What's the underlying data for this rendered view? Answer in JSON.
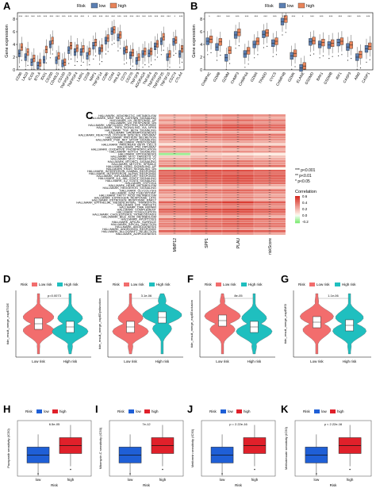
{
  "panel_labels": {
    "A": "A",
    "B": "B",
    "C": "C",
    "D": "D",
    "E": "E",
    "F": "F",
    "G": "G",
    "H": "H",
    "I": "I",
    "J": "J",
    "K": "K"
  },
  "colors": {
    "low": "#5b7fb3",
    "high": "#e8845a",
    "low_violin": "#1fbfbf",
    "high_violin": "#f26d6d",
    "low_box": "#1f5fd6",
    "high_box": "#e0202a"
  },
  "chart_data": [
    {
      "id": "A",
      "type": "box",
      "legend_title": "Risk",
      "legend": [
        "low",
        "high"
      ],
      "ylabel": "Gene expression",
      "yticks": [
        "0",
        "2",
        "4",
        "6",
        "8"
      ],
      "ylim": [
        0,
        9
      ],
      "categories": [
        "CD96",
        "LAG3",
        "ICOS",
        "BTLA",
        "IDO1",
        "CD200",
        "CD40LG",
        "CD160",
        "TNFRSF18",
        "TNFRSF4",
        "LAIR1",
        "CD28",
        "NRP1",
        "TNFSF14",
        "CD86",
        "CD44",
        "HHLA2",
        "CD70",
        "CD276",
        "TNFSF9",
        "ADORA2A",
        "TNFSF4",
        "TNFRSF8",
        "TNFRSF25",
        "TNFSF15",
        "CD274",
        "CTLA4"
      ],
      "significance": [
        "***",
        "***",
        "***",
        "***",
        "***",
        "***",
        "***",
        "***",
        "***",
        "***",
        "***",
        "*",
        "***",
        "***",
        "***",
        "***",
        "***",
        "***",
        "***",
        "***",
        "***",
        "***",
        "***",
        "***",
        "***",
        "*",
        "***"
      ],
      "low_medians": [
        2.6,
        2.0,
        1.2,
        0.7,
        1.6,
        4.0,
        1.5,
        1.0,
        3.1,
        2.8,
        2.8,
        2.2,
        3.8,
        3.0,
        4.6,
        6.1,
        5.1,
        3.0,
        2.3,
        1.4,
        2.5,
        2.6,
        3.7,
        4.5,
        2.0,
        4.4,
        2.5
      ],
      "high_medians": [
        3.6,
        2.8,
        1.8,
        1.1,
        3.2,
        4.6,
        2.2,
        1.2,
        3.8,
        3.4,
        3.3,
        2.9,
        4.3,
        3.4,
        5.0,
        6.3,
        5.5,
        3.2,
        2.7,
        2.0,
        2.9,
        2.9,
        4.1,
        5.2,
        2.5,
        4.7,
        3.3
      ]
    },
    {
      "id": "B",
      "type": "box",
      "legend_title": "Risk",
      "legend": [
        "low",
        "high"
      ],
      "ylabel": "Gene expression",
      "yticks": [
        "0",
        "2",
        "4",
        "6",
        "8"
      ],
      "ylim": [
        0,
        9
      ],
      "categories": [
        "CHMP4C",
        "GZMB",
        "GZMM",
        "CHMP3",
        "CHMP4A",
        "GZMA",
        "TRADD",
        "CYCS",
        "CHMP4B",
        "GZMK",
        "ELANE",
        "GSDMD",
        "BAK1",
        "GSDMB",
        "IRF1",
        "CASP3",
        "AIM2",
        "CASP1"
      ],
      "significance": [
        "*",
        "***",
        "***",
        "***",
        "***",
        "***",
        "***",
        "***",
        "***",
        "***",
        "*",
        "***",
        "***",
        "***",
        "***",
        "***",
        "***",
        "***"
      ],
      "low_medians": [
        4.5,
        3.6,
        1.9,
        5.5,
        2.5,
        4.0,
        5.6,
        4.2,
        7.6,
        2.2,
        0.3,
        4.4,
        4.0,
        3.9,
        4.3,
        3.6,
        2.0,
        3.3
      ],
      "high_medians": [
        4.8,
        4.4,
        3.1,
        5.9,
        3.0,
        4.5,
        5.8,
        4.5,
        8.0,
        2.6,
        0.6,
        4.6,
        4.3,
        4.2,
        4.5,
        3.9,
        2.4,
        3.7
      ]
    },
    {
      "id": "C",
      "type": "heatmap",
      "rows": [
        "HALLMARK_XENOBIOTIC_METABOLISM",
        "HALLMARK_WNT_BETA_CATENIN_SIGNALING",
        "HALLMARK_UV_RESPONSE_UP",
        "HALLMARK_UV_RESPONSE_DN",
        "HALLMARK_UNFOLDED_PROTEIN_RESPONSE",
        "HALLMARK_TNFA_SIGNALING_VIA_NFKB",
        "HALLMARK_TGF_BETA_SIGNALING",
        "HALLMARK_SPERMATOGENESIS",
        "HALLMARK_REACTIVE_OXYGEN_SPECIES_PATHWAY",
        "HALLMARK_PROTEIN_SECRETION",
        "HALLMARK_PI3K_AKT_MTOR_SIGNALING",
        "HALLMARK_PEROXISOME",
        "HALLMARK_PANCREAS_BETA_CELLS",
        "HALLMARK_P53_PATHWAY",
        "HALLMARK_OXIDATIVE_PHOSPHORYLATION",
        "HALLMARK_NOTCH_SIGNALING",
        "HALLMARK_MYOGENESIS",
        "HALLMARK_MYC_TARGETS_V2",
        "HALLMARK_MYC_TARGETS_V1",
        "HALLMARK_MTORC1_SIGNALING",
        "HALLMARK_MITOTIC_SPINDLE",
        "HALLMARK_KRAS_SIGNALING_UP",
        "HALLMARK_KRAS_SIGNALING_DN",
        "HALLMARK_INTERFERON_GAMMA_RESPONSE",
        "HALLMARK_INTERFERON_ALPHA_RESPONSE",
        "HALLMARK_INFLAMMATORY_RESPONSE",
        "HALLMARK_IL6_JAK_STAT3_SIGNALING",
        "HALLMARK_IL2_STAT5_SIGNALING",
        "HALLMARK_HYPOXIA",
        "HALLMARK_HEME_METABOLISM",
        "HALLMARK_HEDGEHOG_SIGNALING",
        "HALLMARK_GLYCOLYSIS",
        "HALLMARK_G2M_CHECKPOINT",
        "HALLMARK_FATTY_ACID_METABOLISM",
        "HALLMARK_ESTROGEN_RESPONSE_LATE",
        "HALLMARK_ESTROGEN_RESPONSE_EARLY",
        "HALLMARK_EPITHELIAL_MESENCHYMAL_TRANSITION",
        "HALLMARK_E2F_TARGETS",
        "HALLMARK_DNA_REPAIR",
        "HALLMARK_COMPLEMENT",
        "HALLMARK_COAGULATION",
        "HALLMARK_CHOLESTEROL_HOMEOSTASIS",
        "HALLMARK_BILE_ACID_METABOLISM",
        "HALLMARK_APOPTOSIS",
        "HALLMARK_APICAL_SURFACE",
        "HALLMARK_APICAL_JUNCTION",
        "HALLMARK_ANGIOGENESIS",
        "HALLMARK_ANDROGEN_RESPONSE",
        "HALLMARK_ALLOGRAFT_REJECTION",
        "HALLMARK_ADIPOGENESIS"
      ],
      "columns": [
        "MMP12",
        "SPP1",
        "PLAU",
        "riskScore"
      ],
      "values": [
        [
          0.25,
          0.3,
          0.35,
          0.3
        ],
        [
          0.15,
          0.2,
          0.25,
          0.2
        ],
        [
          0.3,
          0.35,
          0.4,
          0.35
        ],
        [
          0.2,
          0.25,
          0.3,
          0.28
        ],
        [
          0.35,
          0.4,
          0.45,
          0.4
        ],
        [
          0.4,
          0.45,
          0.5,
          0.42
        ],
        [
          0.3,
          0.35,
          0.4,
          0.35
        ],
        [
          0.1,
          0.15,
          0.2,
          0.12
        ],
        [
          0.35,
          0.4,
          0.4,
          0.38
        ],
        [
          0.3,
          0.35,
          0.38,
          0.32
        ],
        [
          0.28,
          0.3,
          0.35,
          0.3
        ],
        [
          0.2,
          0.22,
          0.25,
          0.22
        ],
        [
          0.05,
          0.1,
          0.12,
          0.08
        ],
        [
          0.3,
          0.35,
          0.4,
          0.35
        ],
        [
          0.15,
          0.2,
          0.18,
          0.2
        ],
        [
          0.25,
          0.28,
          0.3,
          0.26
        ],
        [
          -0.2,
          0.1,
          0.05,
          0.02
        ],
        [
          0.12,
          0.18,
          0.2,
          0.15
        ],
        [
          0.2,
          0.25,
          0.22,
          0.22
        ],
        [
          0.3,
          0.35,
          0.38,
          0.32
        ],
        [
          0.25,
          0.3,
          0.32,
          0.28
        ],
        [
          0.38,
          0.42,
          0.45,
          0.4
        ],
        [
          -0.1,
          0.05,
          0.08,
          0.0
        ],
        [
          0.45,
          0.5,
          0.5,
          0.45
        ],
        [
          0.4,
          0.45,
          0.42,
          0.4
        ],
        [
          0.45,
          0.48,
          0.5,
          0.45
        ],
        [
          0.42,
          0.45,
          0.48,
          0.42
        ],
        [
          0.4,
          0.45,
          0.48,
          0.42
        ],
        [
          0.38,
          0.42,
          0.45,
          0.4
        ],
        [
          0.2,
          0.25,
          0.28,
          0.22
        ],
        [
          0.1,
          0.15,
          0.2,
          0.12
        ],
        [
          0.35,
          0.4,
          0.42,
          0.38
        ],
        [
          0.3,
          0.35,
          0.38,
          0.32
        ],
        [
          0.2,
          0.25,
          0.28,
          0.22
        ],
        [
          0.28,
          0.32,
          0.35,
          0.3
        ],
        [
          0.15,
          0.2,
          0.25,
          0.18
        ],
        [
          0.45,
          0.5,
          0.55,
          0.45
        ],
        [
          0.3,
          0.35,
          0.38,
          0.32
        ],
        [
          0.25,
          0.3,
          0.32,
          0.28
        ],
        [
          0.45,
          0.5,
          0.52,
          0.45
        ],
        [
          0.4,
          0.45,
          0.48,
          0.42
        ],
        [
          0.3,
          0.35,
          0.38,
          0.32
        ],
        [
          0.15,
          0.2,
          0.22,
          0.18
        ],
        [
          0.4,
          0.45,
          0.48,
          0.42
        ],
        [
          0.3,
          0.35,
          0.38,
          0.32
        ],
        [
          0.35,
          0.4,
          0.45,
          0.38
        ],
        [
          0.35,
          0.4,
          0.42,
          0.38
        ],
        [
          0.2,
          0.25,
          0.28,
          0.22
        ],
        [
          0.45,
          0.5,
          0.5,
          0.45
        ],
        [
          0.2,
          0.25,
          0.28,
          0.22
        ]
      ],
      "legend_sig": [
        "*** p<0.001",
        "** p<0.01",
        "* p<0.05"
      ],
      "legend_title": "Correlation",
      "legend_ticks": [
        "0.6",
        "0.4",
        "0.2",
        "0.0",
        "-0.2"
      ],
      "clim": [
        -0.25,
        0.6
      ]
    },
    {
      "id": "D",
      "type": "violin",
      "legend_title": "Risk",
      "legend": [
        "Low risk",
        "High risk"
      ],
      "ylabel": "tide_result_merge_exp$TIDE",
      "xlabels": [
        "Low risk",
        "High risk"
      ],
      "pvalue": "p=0.0073",
      "low_median": 0.0,
      "high_median": -0.1
    },
    {
      "id": "E",
      "type": "violin",
      "legend_title": "Risk",
      "legend": [
        "Low risk",
        "High risk"
      ],
      "ylabel": "tide_result_merge_exp$Dysfunction",
      "xlabels": [
        "Low risk",
        "High risk"
      ],
      "pvalue": "3.1e-06",
      "low_median": -0.1,
      "high_median": 0.2
    },
    {
      "id": "F",
      "type": "violin",
      "legend_title": "Risk",
      "legend": [
        "Low risk",
        "High risk"
      ],
      "ylabel": "tide_result_merge_exp$Exclusion",
      "xlabels": [
        "Low risk",
        "High risk"
      ],
      "pvalue": "8e-05",
      "low_median": 0.1,
      "high_median": -0.1
    },
    {
      "id": "G",
      "type": "violin",
      "legend_title": "Risk",
      "legend": [
        "Low risk",
        "High risk"
      ],
      "ylabel": "tide_result_merge_exp$MSI",
      "xlabels": [
        "Low risk",
        "High risk"
      ],
      "pvalue": "1.1e-06",
      "low_median": 0.05,
      "high_median": -0.05
    },
    {
      "id": "H",
      "type": "box",
      "legend_title": "Risk",
      "legend": [
        "low",
        "high"
      ],
      "ylabel": "Pazopanib sensitivity (IC50)",
      "xlabel": "Risk",
      "xlabels": [
        "low",
        "high"
      ],
      "pvalue": "6.5e-05",
      "low_median": 3.5,
      "high_median": 3.8
    },
    {
      "id": "I",
      "type": "box",
      "legend_title": "Risk",
      "legend": [
        "low",
        "high"
      ],
      "ylabel": "Mitomycin.C sensitivity (IC50)",
      "xlabel": "Risk",
      "xlabels": [
        "low",
        "high"
      ],
      "pvalue": "7e-12",
      "low_median": -1.1,
      "high_median": -0.9
    },
    {
      "id": "J",
      "type": "box",
      "legend_title": "Risk",
      "legend": [
        "low",
        "high"
      ],
      "ylabel": "Metformin sensitivity (IC50)",
      "xlabel": "Risk",
      "xlabels": [
        "low",
        "high"
      ],
      "pvalue": "p = 2.22e-16",
      "low_median": 7.0,
      "high_median": 7.6
    },
    {
      "id": "K",
      "type": "box",
      "legend_title": "Risk",
      "legend": [
        "low",
        "high"
      ],
      "ylabel": "Methotrexate sensitivity (IC50)",
      "xlabel": "Risk",
      "xlabels": [
        "low",
        "high"
      ],
      "pvalue": "p < 2.22e-16",
      "low_median": -0.9,
      "high_median": -0.6
    }
  ]
}
